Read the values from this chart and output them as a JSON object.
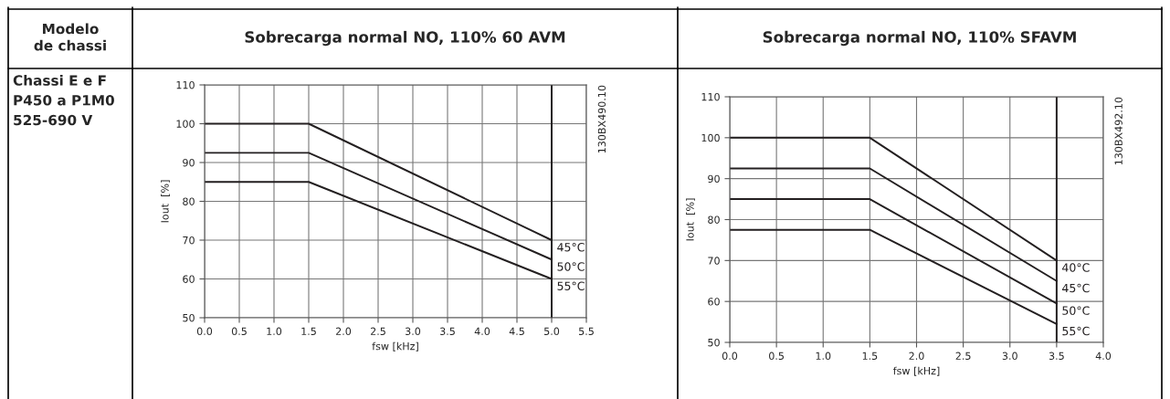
{
  "chart_data": [
    {
      "type": "other",
      "title": "Modelo\nde chassi",
      "annotations": [
        "Chassi E e F\nP450 a P1M0\n525-690 V"
      ]
    },
    {
      "type": "line",
      "title": "Sobrecarga normal NO, 110% 60 AVM",
      "xlabel": "fsw [kHz]",
      "ylabel": "Iout  [%]",
      "x": [
        0,
        1.5,
        5.0
      ],
      "series": [
        {
          "name": "45°C",
          "color": "#231f20",
          "values": [
            100,
            100,
            70
          ]
        },
        {
          "name": "50°C",
          "color": "#231f20",
          "values": [
            92.5,
            92.5,
            65
          ]
        },
        {
          "name": "55°C",
          "color": "#231f20",
          "values": [
            85,
            85,
            60
          ]
        }
      ],
      "xlim": [
        0,
        5.5
      ],
      "xticks": [
        {
          "value": 0,
          "label": "0.0"
        },
        0.5,
        {
          "value": 1,
          "label": "1.0"
        },
        1.5,
        {
          "value": 2,
          "label": "2.0"
        },
        2.5,
        {
          "value": 3,
          "label": "3.0"
        },
        3.5,
        {
          "value": 4,
          "label": "4.0"
        },
        4.5,
        {
          "value": 5,
          "label": "5.0"
        },
        5.5
      ],
      "ylim": [
        50,
        110
      ],
      "yticks": [
        50,
        60,
        70,
        80,
        90,
        100,
        110
      ],
      "ref_lines": [
        {
          "axis": "x",
          "value": 5.0,
          "color": "#231f20"
        }
      ],
      "grid": true,
      "legend": false,
      "marker": "none",
      "line_style": "solid",
      "annotations": [
        "130BX490.10"
      ]
    },
    {
      "type": "line",
      "title": "Sobrecarga normal NO, 110% SFAVM",
      "xlabel": "fsw [kHz]",
      "ylabel": "Iout  [%]",
      "x": [
        0,
        1.5,
        3.5
      ],
      "series": [
        {
          "name": "40°C",
          "color": "#231f20",
          "values": [
            100,
            100,
            70
          ]
        },
        {
          "name": "45°C",
          "color": "#231f20",
          "values": [
            92.5,
            92.5,
            65
          ]
        },
        {
          "name": "50°C",
          "color": "#231f20",
          "values": [
            85,
            85,
            59.5
          ]
        },
        {
          "name": "55°C",
          "color": "#231f20",
          "values": [
            77.5,
            77.5,
            54.5
          ]
        }
      ],
      "xlim": [
        0,
        4.0
      ],
      "xticks": [
        {
          "value": 0,
          "label": "0.0"
        },
        0.5,
        {
          "value": 1,
          "label": "1.0"
        },
        1.5,
        {
          "value": 2,
          "label": "2.0"
        },
        2.5,
        {
          "value": 3,
          "label": "3.0"
        },
        3.5,
        {
          "value": 4,
          "label": "4.0"
        }
      ],
      "ylim": [
        50,
        110
      ],
      "yticks": [
        50,
        60,
        70,
        80,
        90,
        100,
        110
      ],
      "ref_lines": [
        {
          "axis": "x",
          "value": 3.5,
          "color": "#231f20"
        }
      ],
      "grid": true,
      "legend": false,
      "marker": "none",
      "line_style": "solid",
      "annotations": [
        "130BX492.10"
      ]
    }
  ]
}
